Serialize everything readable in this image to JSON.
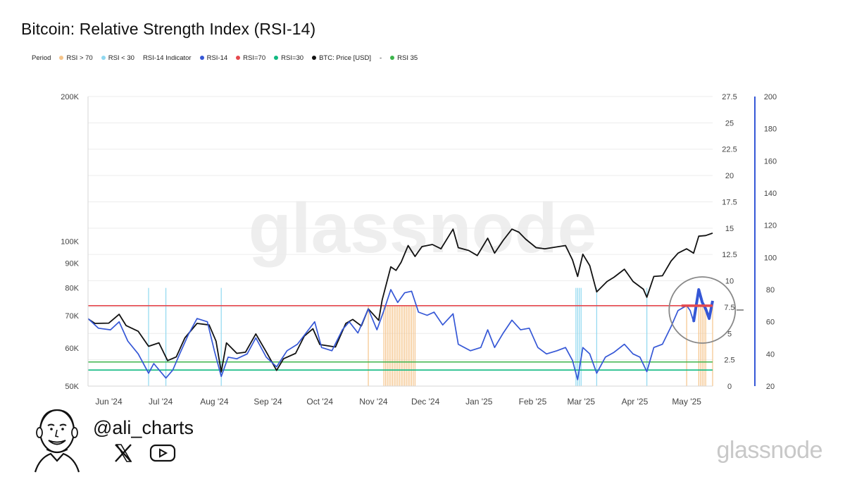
{
  "title": "Bitcoin: Relative Strength Index (RSI-14)",
  "legend": [
    {
      "label": "Period",
      "color": null
    },
    {
      "label": "RSI > 70",
      "color": "#f5c48a"
    },
    {
      "label": "RSI < 30",
      "color": "#8fd8f0"
    },
    {
      "label": "RSI-14 Indicator",
      "color": null
    },
    {
      "label": "RSI-14",
      "color": "#3557d6"
    },
    {
      "label": "RSI=70",
      "color": "#e5484d"
    },
    {
      "label": "RSI=30",
      "color": "#10b981"
    },
    {
      "label": "BTC: Price [USD]",
      "color": "#111111"
    },
    {
      "label": "-",
      "color": null
    },
    {
      "label": "RSI 35",
      "color": "#3cb44b"
    }
  ],
  "watermark": "glassnode",
  "footer": {
    "handle": "@ali_charts",
    "brand": "glassnode"
  },
  "icons": [
    "x-logo-icon",
    "youtube-icon",
    "author-portrait"
  ],
  "chart_data": {
    "type": "line",
    "x_start_date": "2024-05-20",
    "x_end_date": "2025-05-16",
    "x_tick_labels": [
      "Jun '24",
      "Jul '24",
      "Aug '24",
      "Sep '24",
      "Oct '24",
      "Nov '24",
      "Dec '24",
      "Jan '25",
      "Feb '25",
      "Mar '25",
      "Apr '25",
      "May '25"
    ],
    "x_tick_dates": [
      "2024-06-01",
      "2024-07-01",
      "2024-08-01",
      "2024-09-01",
      "2024-10-01",
      "2024-11-01",
      "2024-12-01",
      "2025-01-01",
      "2025-02-01",
      "2025-03-01",
      "2025-04-01",
      "2025-05-01"
    ],
    "price_axis": {
      "scale": "log",
      "ylim": [
        50000,
        200000
      ],
      "tick_labels": [
        "50K",
        "60K",
        "70K",
        "80K",
        "90K",
        "100K",
        "200K"
      ],
      "tick_values": [
        50000,
        60000,
        70000,
        80000,
        90000,
        100000,
        200000
      ]
    },
    "mid_axis": {
      "ylim": [
        0,
        27.5
      ],
      "tick_labels": [
        "0",
        "2.5",
        "5",
        "7.5",
        "10",
        "12.5",
        "15",
        "17.5",
        "20",
        "22.5",
        "25",
        "27.5"
      ],
      "tick_values": [
        0,
        2.5,
        5,
        7.5,
        10,
        12.5,
        15,
        17.5,
        20,
        22.5,
        25,
        27.5
      ]
    },
    "rsi_axis": {
      "ylim": [
        20,
        200
      ],
      "tick_labels": [
        "20",
        "40",
        "60",
        "80",
        "100",
        "120",
        "140",
        "160",
        "180",
        "200"
      ],
      "tick_values": [
        20,
        40,
        60,
        80,
        100,
        120,
        140,
        160,
        180,
        200
      ]
    },
    "series": [
      {
        "name": "BTC: Price [USD]",
        "color": "#111111",
        "axis": "price",
        "points": [
          [
            "2024-05-20",
            69000
          ],
          [
            "2024-05-24",
            67500
          ],
          [
            "2024-06-01",
            67600
          ],
          [
            "2024-06-07",
            70500
          ],
          [
            "2024-06-11",
            66800
          ],
          [
            "2024-06-18",
            65000
          ],
          [
            "2024-06-24",
            60500
          ],
          [
            "2024-06-30",
            61500
          ],
          [
            "2024-07-05",
            56500
          ],
          [
            "2024-07-10",
            57500
          ],
          [
            "2024-07-15",
            63000
          ],
          [
            "2024-07-22",
            67500
          ],
          [
            "2024-07-29",
            67000
          ],
          [
            "2024-08-02",
            62000
          ],
          [
            "2024-08-05",
            53500
          ],
          [
            "2024-08-08",
            61500
          ],
          [
            "2024-08-14",
            58500
          ],
          [
            "2024-08-19",
            58800
          ],
          [
            "2024-08-25",
            64200
          ],
          [
            "2024-08-31",
            58900
          ],
          [
            "2024-09-06",
            53900
          ],
          [
            "2024-09-10",
            57000
          ],
          [
            "2024-09-17",
            58500
          ],
          [
            "2024-09-22",
            63500
          ],
          [
            "2024-09-27",
            65800
          ],
          [
            "2024-10-01",
            61000
          ],
          [
            "2024-10-10",
            60300
          ],
          [
            "2024-10-16",
            67500
          ],
          [
            "2024-10-20",
            68800
          ],
          [
            "2024-10-25",
            66700
          ],
          [
            "2024-10-29",
            72400
          ],
          [
            "2024-11-04",
            68500
          ],
          [
            "2024-11-06",
            75500
          ],
          [
            "2024-11-11",
            88500
          ],
          [
            "2024-11-14",
            87000
          ],
          [
            "2024-11-17",
            90500
          ],
          [
            "2024-11-21",
            98000
          ],
          [
            "2024-11-25",
            93000
          ],
          [
            "2024-11-29",
            97500
          ],
          [
            "2024-12-05",
            98500
          ],
          [
            "2024-12-10",
            96500
          ],
          [
            "2024-12-17",
            106000
          ],
          [
            "2024-12-20",
            97000
          ],
          [
            "2024-12-26",
            95700
          ],
          [
            "2024-12-31",
            93400
          ],
          [
            "2025-01-06",
            101500
          ],
          [
            "2025-01-10",
            94500
          ],
          [
            "2025-01-15",
            100500
          ],
          [
            "2025-01-20",
            106000
          ],
          [
            "2025-01-24",
            104500
          ],
          [
            "2025-01-28",
            101000
          ],
          [
            "2025-02-03",
            97000
          ],
          [
            "2025-02-08",
            96500
          ],
          [
            "2025-02-16",
            97500
          ],
          [
            "2025-02-20",
            98000
          ],
          [
            "2025-02-24",
            91500
          ],
          [
            "2025-02-27",
            84500
          ],
          [
            "2025-03-02",
            94000
          ],
          [
            "2025-03-06",
            89000
          ],
          [
            "2025-03-10",
            78500
          ],
          [
            "2025-03-16",
            82500
          ],
          [
            "2025-03-20",
            84200
          ],
          [
            "2025-03-26",
            87500
          ],
          [
            "2025-03-31",
            82500
          ],
          [
            "2025-04-06",
            79500
          ],
          [
            "2025-04-08",
            76500
          ],
          [
            "2025-04-12",
            84500
          ],
          [
            "2025-04-17",
            84800
          ],
          [
            "2025-04-22",
            91000
          ],
          [
            "2025-04-26",
            94500
          ],
          [
            "2025-05-01",
            96500
          ],
          [
            "2025-05-05",
            94500
          ],
          [
            "2025-05-08",
            102500
          ],
          [
            "2025-05-12",
            102800
          ],
          [
            "2025-05-16",
            104000
          ]
        ]
      },
      {
        "name": "RSI-14",
        "color": "#3557d6",
        "axis": "rsi",
        "points": [
          [
            "2024-05-20",
            62
          ],
          [
            "2024-05-26",
            56
          ],
          [
            "2024-06-02",
            55
          ],
          [
            "2024-06-07",
            60
          ],
          [
            "2024-06-12",
            48
          ],
          [
            "2024-06-18",
            40
          ],
          [
            "2024-06-24",
            28
          ],
          [
            "2024-06-27",
            34
          ],
          [
            "2024-07-04",
            25
          ],
          [
            "2024-07-08",
            30
          ],
          [
            "2024-07-12",
            40
          ],
          [
            "2024-07-17",
            52
          ],
          [
            "2024-07-22",
            62
          ],
          [
            "2024-07-28",
            60
          ],
          [
            "2024-08-01",
            42
          ],
          [
            "2024-08-05",
            26
          ],
          [
            "2024-08-09",
            38
          ],
          [
            "2024-08-14",
            37
          ],
          [
            "2024-08-20",
            40
          ],
          [
            "2024-08-25",
            50
          ],
          [
            "2024-08-31",
            38
          ],
          [
            "2024-09-06",
            32
          ],
          [
            "2024-09-12",
            42
          ],
          [
            "2024-09-18",
            46
          ],
          [
            "2024-09-23",
            53
          ],
          [
            "2024-09-28",
            60
          ],
          [
            "2024-10-02",
            44
          ],
          [
            "2024-10-08",
            42
          ],
          [
            "2024-10-14",
            55
          ],
          [
            "2024-10-18",
            60
          ],
          [
            "2024-10-23",
            53
          ],
          [
            "2024-10-29",
            68
          ],
          [
            "2024-11-03",
            55
          ],
          [
            "2024-11-07",
            67
          ],
          [
            "2024-11-11",
            80
          ],
          [
            "2024-11-15",
            72
          ],
          [
            "2024-11-19",
            78
          ],
          [
            "2024-11-23",
            79
          ],
          [
            "2024-11-27",
            66
          ],
          [
            "2024-12-02",
            64
          ],
          [
            "2024-12-06",
            66
          ],
          [
            "2024-12-11",
            58
          ],
          [
            "2024-12-17",
            65
          ],
          [
            "2024-12-20",
            46
          ],
          [
            "2024-12-27",
            42
          ],
          [
            "2025-01-02",
            44
          ],
          [
            "2025-01-06",
            55
          ],
          [
            "2025-01-10",
            44
          ],
          [
            "2025-01-15",
            53
          ],
          [
            "2025-01-20",
            61
          ],
          [
            "2025-01-25",
            55
          ],
          [
            "2025-01-30",
            56
          ],
          [
            "2025-02-04",
            44
          ],
          [
            "2025-02-09",
            40
          ],
          [
            "2025-02-15",
            42
          ],
          [
            "2025-02-20",
            44
          ],
          [
            "2025-02-24",
            36
          ],
          [
            "2025-02-27",
            24
          ],
          [
            "2025-03-02",
            44
          ],
          [
            "2025-03-06",
            40
          ],
          [
            "2025-03-10",
            28
          ],
          [
            "2025-03-15",
            38
          ],
          [
            "2025-03-20",
            41
          ],
          [
            "2025-03-26",
            46
          ],
          [
            "2025-03-31",
            40
          ],
          [
            "2025-04-04",
            38
          ],
          [
            "2025-04-08",
            29
          ],
          [
            "2025-04-12",
            44
          ],
          [
            "2025-04-17",
            46
          ],
          [
            "2025-04-22",
            57
          ],
          [
            "2025-04-26",
            67
          ],
          [
            "2025-05-01",
            70
          ],
          [
            "2025-05-03",
            67
          ],
          [
            "2025-05-05",
            60
          ],
          [
            "2025-05-08",
            80
          ],
          [
            "2025-05-10",
            72
          ],
          [
            "2025-05-12",
            68
          ],
          [
            "2025-05-14",
            62
          ],
          [
            "2025-05-16",
            73
          ]
        ]
      },
      {
        "name": "RSI=70",
        "color": "#e5484d",
        "axis": "rsi",
        "value": 70
      },
      {
        "name": "RSI 35",
        "color": "#3cb44b",
        "axis": "rsi",
        "value": 35
      },
      {
        "name": "RSI=30",
        "color": "#10b981",
        "axis": "rsi",
        "value": 30
      }
    ],
    "highlight_rsi_over_70_dates": [
      "2024-10-29",
      "2024-11-07",
      "2024-11-08",
      "2024-11-09",
      "2024-11-10",
      "2024-11-11",
      "2024-11-12",
      "2024-11-13",
      "2024-11-14",
      "2024-11-15",
      "2024-11-16",
      "2024-11-17",
      "2024-11-18",
      "2024-11-19",
      "2024-11-20",
      "2024-11-21",
      "2024-11-22",
      "2024-11-23",
      "2024-11-24",
      "2024-11-25",
      "2025-05-01",
      "2025-05-08",
      "2025-05-09",
      "2025-05-10",
      "2025-05-11",
      "2025-05-12",
      "2025-05-16"
    ],
    "highlight_rsi_under_30_dates": [
      "2024-06-24",
      "2024-07-04",
      "2024-08-05",
      "2025-02-26",
      "2025-02-27",
      "2025-02-28",
      "2025-03-01",
      "2025-03-10",
      "2025-04-08"
    ],
    "annotation": {
      "shape": "circle",
      "around_date": "2025-05-10"
    },
    "grid": true
  }
}
